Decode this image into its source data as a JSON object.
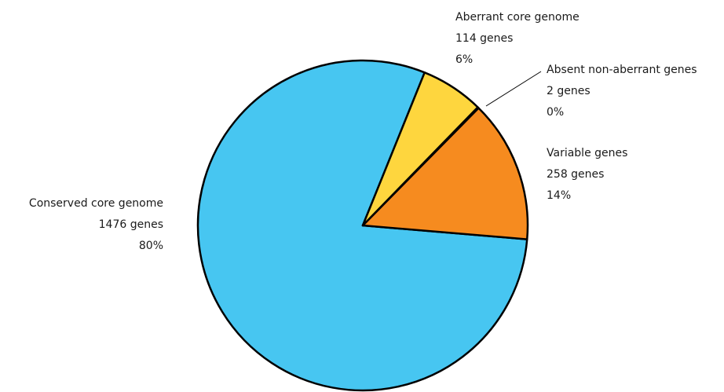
{
  "chart_data": {
    "type": "pie",
    "title": "",
    "slices": [
      {
        "key": "conserved",
        "name": "Conserved core genome",
        "genes_label": "1476 genes",
        "percent_label": "80%",
        "value": 1476,
        "color": "#47c6f1"
      },
      {
        "key": "variable",
        "name": "Variable genes",
        "genes_label": "258 genes",
        "percent_label": "14%",
        "value": 258,
        "color": "#f68b1f"
      },
      {
        "key": "absent",
        "name": "Absent non-aberrant genes",
        "genes_label": "2 genes",
        "percent_label": "0%",
        "value": 2,
        "color": "#f68b1f"
      },
      {
        "key": "aberrant",
        "name": "Aberrant core genome",
        "genes_label": "114 genes",
        "percent_label": "6%",
        "value": 114,
        "color": "#fed63e"
      }
    ]
  }
}
